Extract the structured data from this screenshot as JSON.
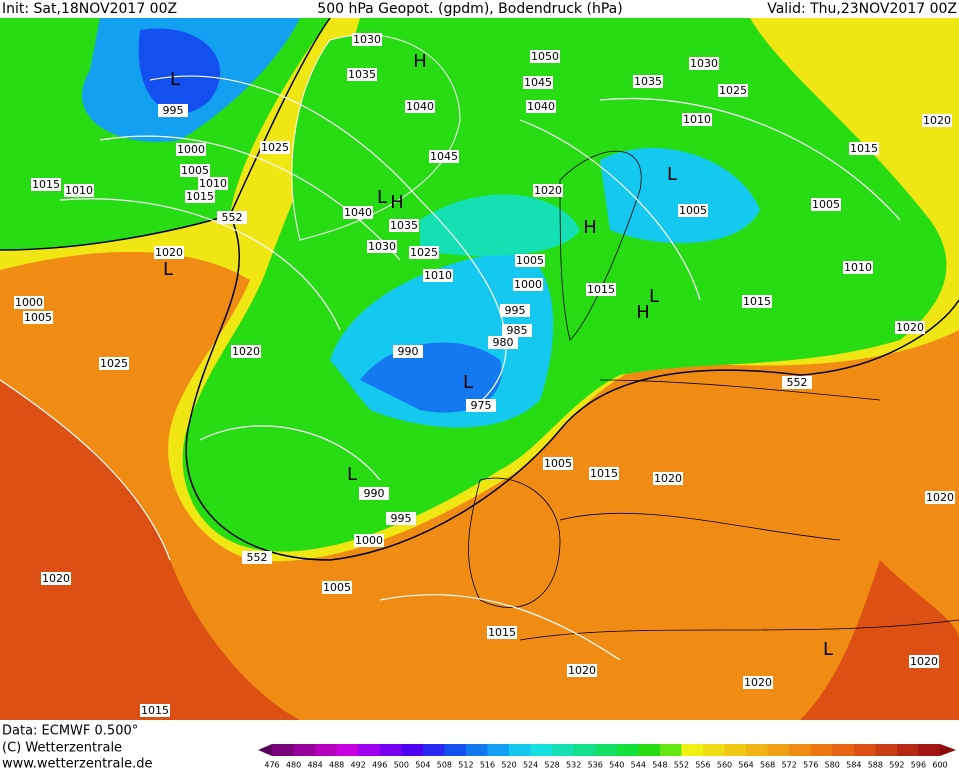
{
  "header": {
    "init": "Init: Sat,18NOV2017 00Z",
    "title": "500 hPa Geopot. (gpdm), Bodendruck (hPa)",
    "valid": "Valid: Thu,23NOV2017 00Z"
  },
  "footer": {
    "data": "Data: ECMWF  0.500°",
    "copyright": "(C) Wetterzentrale",
    "url": "www.wetterzentrale.de"
  },
  "legend": {
    "ticks": [
      476,
      480,
      484,
      488,
      492,
      496,
      500,
      504,
      508,
      512,
      516,
      520,
      524,
      528,
      532,
      536,
      540,
      544,
      548,
      552,
      556,
      560,
      564,
      568,
      572,
      576,
      580,
      584,
      588,
      592,
      596,
      600
    ],
    "colors": [
      "#5a005a",
      "#780078",
      "#96009a",
      "#b400be",
      "#c800e0",
      "#a000f0",
      "#7800f0",
      "#5000f0",
      "#2828f0",
      "#1450f0",
      "#1478f0",
      "#14a0f0",
      "#14c8f0",
      "#14e0e0",
      "#14e0b4",
      "#14e08c",
      "#14e064",
      "#14e03c",
      "#28dc14",
      "#64e614",
      "#f0f014",
      "#f0dc14",
      "#f0c814",
      "#f0b414",
      "#f0a014",
      "#f08c14",
      "#f07814",
      "#e66414",
      "#dc5014",
      "#c83c14",
      "#b42814",
      "#a01414",
      "#8c0a0a"
    ]
  },
  "isobar_labels": [
    1030,
    1035,
    1040,
    1045,
    1050,
    1045,
    1040,
    1035,
    1030,
    1025,
    1010,
    1015,
    1020,
    1005,
    1005,
    1020,
    1010,
    995,
    1000,
    1005,
    1010,
    1015,
    1015,
    1010,
    1020,
    1025,
    1040,
    1035,
    1030,
    1025,
    1010,
    1005,
    1000,
    995,
    985,
    980,
    990,
    975,
    1015,
    1015,
    1020,
    1020,
    1025,
    1000,
    1005,
    1005,
    1015,
    1020,
    1020,
    990,
    995,
    1000,
    1005,
    1020,
    1015,
    1020,
    1020,
    1020,
    1015,
    552,
    552,
    552
  ],
  "pressure_centers": [
    "L",
    "L",
    "L",
    "H",
    "H",
    "L",
    "H",
    "L",
    "H",
    "L",
    "L",
    "L"
  ]
}
